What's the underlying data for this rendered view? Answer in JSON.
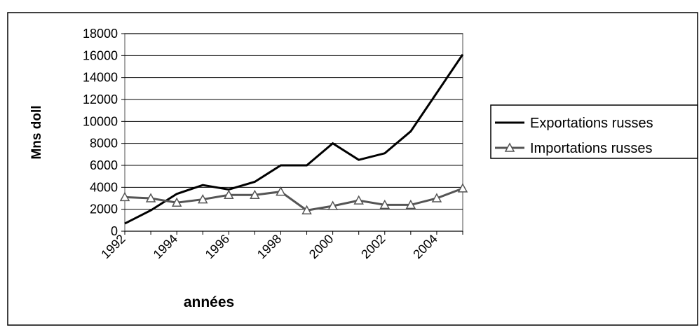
{
  "chart_data": {
    "type": "line",
    "x_label": "années",
    "y_label": "Mns doll",
    "categories": [
      "1992",
      null,
      "1994",
      null,
      "1996",
      null,
      "1998",
      null,
      "2000",
      null,
      "2002",
      null,
      "2004",
      null
    ],
    "series": [
      {
        "name": "Exportations russes",
        "color": "#000000",
        "marker": "none",
        "values": [
          700,
          1900,
          3400,
          4200,
          3800,
          4500,
          6000,
          6000,
          8000,
          6500,
          7100,
          9100,
          12600,
          16100
        ]
      },
      {
        "name": "Importations russes",
        "color": "#555555",
        "marker": "triangle",
        "values": [
          3100,
          3000,
          2600,
          2900,
          3300,
          3300,
          3600,
          1900,
          2300,
          2800,
          2400,
          2400,
          3000,
          3900
        ]
      }
    ],
    "ylim": [
      0,
      18000
    ],
    "yticks": [
      0,
      2000,
      4000,
      6000,
      8000,
      10000,
      12000,
      14000,
      16000,
      18000
    ],
    "grid": true,
    "legend": "right"
  }
}
